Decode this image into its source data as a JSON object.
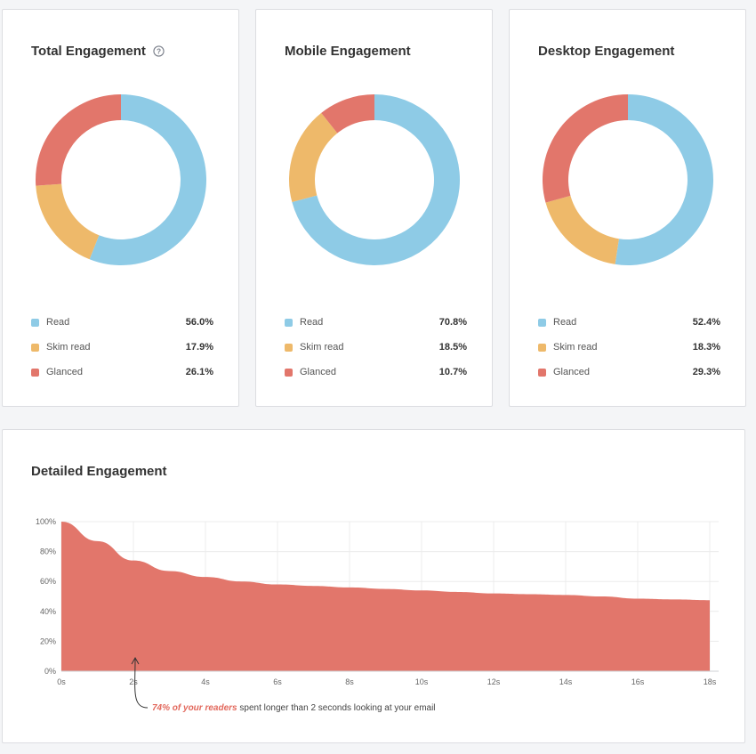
{
  "colors": {
    "read": "#8ecbe6",
    "skim": "#eeb96a",
    "glanced": "#e2766b",
    "area": "#e2766b",
    "grid": "#ececec"
  },
  "cards": [
    {
      "title": "Total Engagement",
      "has_help": true,
      "help_icon": "question-circle-icon",
      "segments": [
        {
          "label": "Read",
          "value": 56.0,
          "display": "56.0%",
          "key": "read"
        },
        {
          "label": "Skim read",
          "value": 17.9,
          "display": "17.9%",
          "key": "skim"
        },
        {
          "label": "Glanced",
          "value": 26.1,
          "display": "26.1%",
          "key": "glanced"
        }
      ]
    },
    {
      "title": "Mobile Engagement",
      "has_help": false,
      "segments": [
        {
          "label": "Read",
          "value": 70.8,
          "display": "70.8%",
          "key": "read"
        },
        {
          "label": "Skim read",
          "value": 18.5,
          "display": "18.5%",
          "key": "skim"
        },
        {
          "label": "Glanced",
          "value": 10.7,
          "display": "10.7%",
          "key": "glanced"
        }
      ]
    },
    {
      "title": "Desktop Engagement",
      "has_help": false,
      "segments": [
        {
          "label": "Read",
          "value": 52.4,
          "display": "52.4%",
          "key": "read"
        },
        {
          "label": "Skim read",
          "value": 18.3,
          "display": "18.3%",
          "key": "skim"
        },
        {
          "label": "Glanced",
          "value": 29.3,
          "display": "29.3%",
          "key": "glanced"
        }
      ]
    }
  ],
  "detailed": {
    "title": "Detailed Engagement",
    "annotation_highlight": "74% of your readers",
    "annotation_rest": " spent longer than 2 seconds looking at your email"
  },
  "chart_data": [
    {
      "type": "pie",
      "title": "Total Engagement",
      "categories": [
        "Read",
        "Skim read",
        "Glanced"
      ],
      "values": [
        56.0,
        17.9,
        26.1
      ]
    },
    {
      "type": "pie",
      "title": "Mobile Engagement",
      "categories": [
        "Read",
        "Skim read",
        "Glanced"
      ],
      "values": [
        70.8,
        18.5,
        10.7
      ]
    },
    {
      "type": "pie",
      "title": "Desktop Engagement",
      "categories": [
        "Read",
        "Skim read",
        "Glanced"
      ],
      "values": [
        52.4,
        18.3,
        29.3
      ]
    },
    {
      "type": "area",
      "title": "Detailed Engagement",
      "x": [
        0,
        1,
        2,
        3,
        4,
        5,
        6,
        7,
        8,
        9,
        10,
        11,
        12,
        13,
        14,
        15,
        16,
        17,
        18
      ],
      "values": [
        100,
        87,
        74,
        67,
        63,
        60,
        58,
        57,
        56,
        55,
        54,
        53,
        52,
        51.5,
        51,
        50,
        48.5,
        48,
        47.5
      ],
      "xticks": [
        "0s",
        "2s",
        "4s",
        "6s",
        "8s",
        "10s",
        "12s",
        "14s",
        "16s",
        "18s"
      ],
      "yticks": [
        "0%",
        "20%",
        "40%",
        "60%",
        "80%",
        "100%"
      ],
      "xlim": [
        0,
        18
      ],
      "ylim": [
        0,
        100
      ],
      "ylabel": "",
      "xlabel": ""
    }
  ]
}
